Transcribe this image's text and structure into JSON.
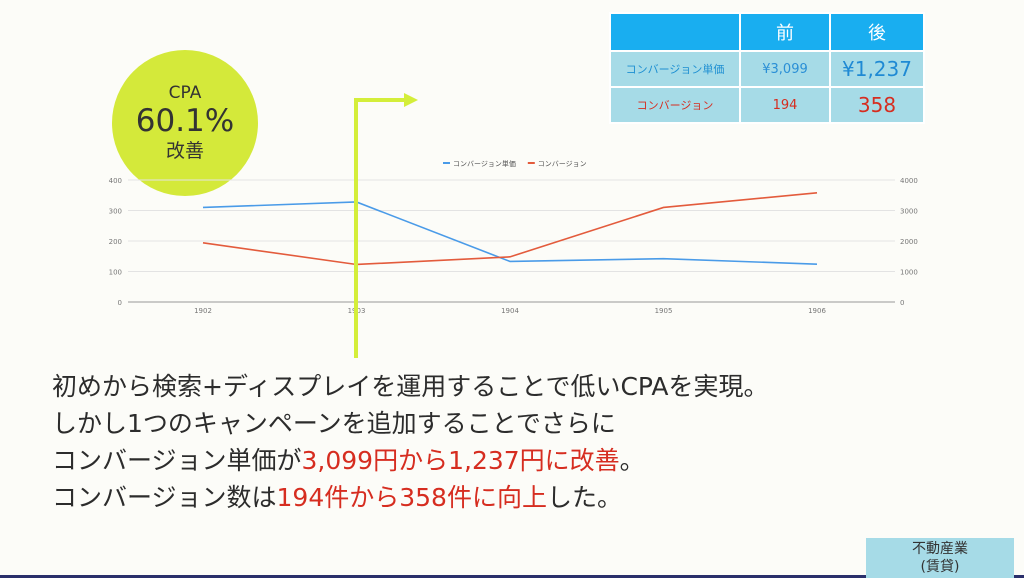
{
  "badge": {
    "line1": "CPA",
    "line2": "60.1%",
    "line3": "改善"
  },
  "table": {
    "headers": [
      "",
      "前",
      "後"
    ],
    "rows": [
      {
        "label": "コンバージョン単価",
        "before": "¥3,099",
        "after": "¥1,237"
      },
      {
        "label": "コンバージョン",
        "before": "194",
        "after": "358"
      }
    ]
  },
  "chart_data": {
    "type": "line",
    "categories": [
      "1902",
      "1903",
      "1904",
      "1905",
      "1906"
    ],
    "series": [
      {
        "name": "コンバージョン単価",
        "axis": "left",
        "color": "#4a9be8",
        "values": [
          310,
          328,
          133,
          142,
          124
        ]
      },
      {
        "name": "コンバージョン",
        "axis": "right",
        "color": "#e35b3c",
        "values": [
          1940,
          1230,
          1480,
          3100,
          3580
        ]
      }
    ],
    "y_left": {
      "ticks": [
        "0",
        "100",
        "200",
        "300",
        "400"
      ],
      "lim": [
        0,
        400
      ]
    },
    "y_right": {
      "ticks": [
        "0",
        "1000",
        "2000",
        "3000",
        "4000"
      ],
      "lim": [
        0,
        4000
      ]
    },
    "grid": true,
    "legend_position": "top-center"
  },
  "text": {
    "line1": "初めから検索+ディスプレイを運用することで低いCPAを実現。",
    "line2": "しかし1つのキャンペーンを追加することでさらに",
    "line3_prefix": "コンバージョン単価が",
    "line3_highlight": "3,099円から1,237円に改善",
    "line3_suffix": "。",
    "line4_prefix": "コンバージョン数は",
    "line4_highlight": "194件から358件に向上",
    "line4_suffix": "した。"
  },
  "category": {
    "line1": "不動産業",
    "line2": "(賃貸)"
  },
  "colors": {
    "badge": "#d4e93a",
    "table_header": "#19aef0",
    "table_cell": "#a6dbe7",
    "highlight_red": "#d62d20",
    "arrow": "#d4ee3a"
  }
}
